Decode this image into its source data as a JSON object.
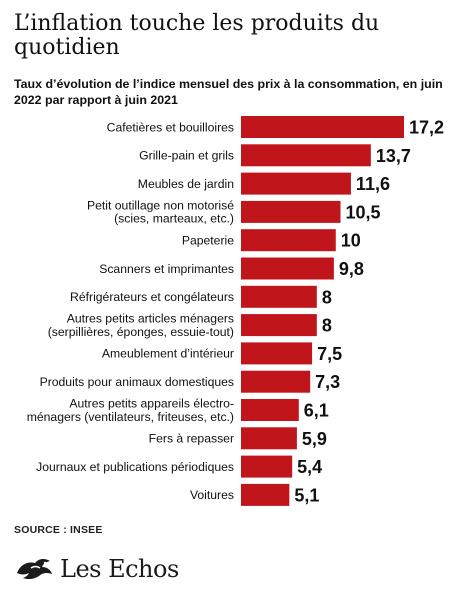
{
  "header": {
    "title": "L’inflation touche les produits du quotidien",
    "subtitle": "Taux d’évolution de l’indice mensuel des prix à la consommation, en juin 2022 par rapport à juin 2021"
  },
  "footer": {
    "source": "SOURCE : INSEE",
    "logo_text": "Les Echos",
    "logo_icon": "les-echos-dragon-logo"
  },
  "colors": {
    "bar": "#c0151b",
    "text": "#111111"
  },
  "chart_data": {
    "type": "bar",
    "orientation": "horizontal",
    "title": "L’inflation touche les produits du quotidien",
    "subtitle": "Taux d’évolution de l’indice mensuel des prix à la consommation, en juin 2022 par rapport à juin 2021",
    "xlabel": "",
    "ylabel": "",
    "grid": false,
    "xlim": [
      0,
      17.2
    ],
    "categories": [
      [
        "Cafetières et bouilloires"
      ],
      [
        "Grille-pain et grils"
      ],
      [
        "Meubles de jardin"
      ],
      [
        "Petit outillage non motorisé",
        "(scies, marteaux, etc.)"
      ],
      [
        "Papeterie"
      ],
      [
        "Scanners et imprimantes"
      ],
      [
        "Réfrigérateurs et congélateurs"
      ],
      [
        "Autres petits articles ménagers",
        "(serpillières, éponges, essuie-tout)"
      ],
      [
        "Ameublement d’intérieur"
      ],
      [
        "Produits pour animaux domestiques"
      ],
      [
        "Autres petits appareils électro-",
        "ménagers (ventilateurs, friteuses, etc.)"
      ],
      [
        "Fers à repasser"
      ],
      [
        "Journaux et publications périodiques"
      ],
      [
        "Voitures"
      ]
    ],
    "values": [
      17.2,
      13.7,
      11.6,
      10.5,
      10,
      9.8,
      8,
      8,
      7.5,
      7.3,
      6.1,
      5.9,
      5.4,
      5.1
    ],
    "value_labels": [
      "17,2",
      "13,7",
      "11,6",
      "10,5",
      "10",
      "9,8",
      "8",
      "8",
      "7,5",
      "7,3",
      "6,1",
      "5,9",
      "5,4",
      "5,1"
    ]
  }
}
